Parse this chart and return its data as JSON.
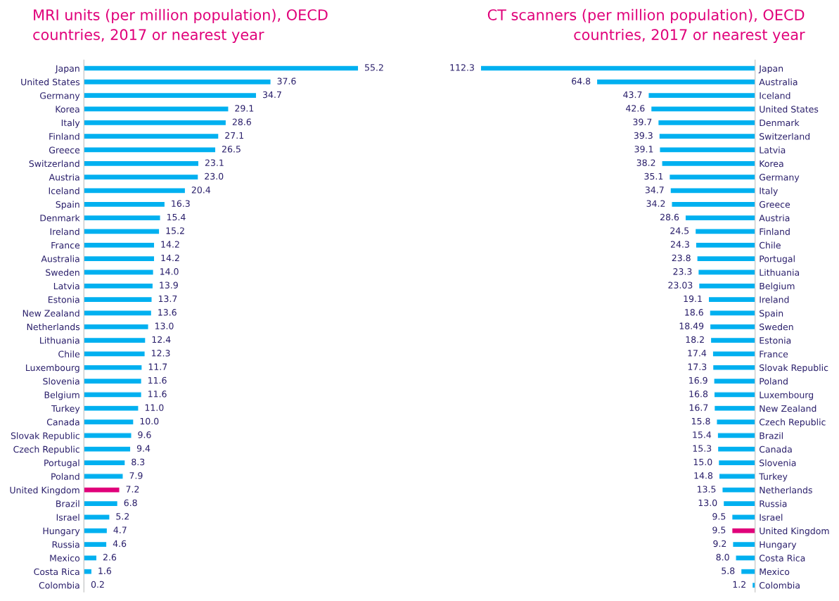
{
  "chart_data": [
    {
      "type": "bar",
      "orientation": "horizontal",
      "title": "MRI units (per million population), OECD countries, 2017 or nearest year",
      "categories": [
        "Japan",
        "United States",
        "Germany",
        "Korea",
        "Italy",
        "Finland",
        "Greece",
        "Switzerland",
        "Austria",
        "Iceland",
        "Spain",
        "Denmark",
        "Ireland",
        "France",
        "Australia",
        "Sweden",
        "Latvia",
        "Estonia",
        "New Zealand",
        "Netherlands",
        "Lithuania",
        "Chile",
        "Luxembourg",
        "Slovenia",
        "Belgium",
        "Turkey",
        "Canada",
        "Slovak Republic",
        "Czech Republic",
        "Portugal",
        "Poland",
        "United Kingdom",
        "Brazil",
        "Israel",
        "Hungary",
        "Russia",
        "Mexico",
        "Costa Rica",
        "Colombia"
      ],
      "values": [
        55.2,
        37.6,
        34.7,
        29.1,
        28.6,
        27.1,
        26.5,
        23.1,
        23.0,
        20.4,
        16.3,
        15.4,
        15.2,
        14.2,
        14.2,
        14.0,
        13.9,
        13.7,
        13.6,
        13.0,
        12.4,
        12.3,
        11.7,
        11.6,
        11.6,
        11.0,
        10.0,
        9.6,
        9.4,
        8.3,
        7.9,
        7.2,
        6.8,
        5.2,
        4.7,
        4.6,
        2.6,
        1.6,
        0.2
      ],
      "value_labels": [
        "55.2",
        "37.6",
        "34.7",
        "29.1",
        "28.6",
        "27.1",
        "26.5",
        "23.1",
        "23.0",
        "20.4",
        "16.3",
        "15.4",
        "15.2",
        "14.2",
        "14.2",
        "14.0",
        "13.9",
        "13.7",
        "13.6",
        "13.0",
        "12.4",
        "12.3",
        "11.7",
        "11.6",
        "11.6",
        "11.0",
        "10.0",
        "9.6",
        "9.4",
        "8.3",
        "7.9",
        "7.2",
        "6.8",
        "5.2",
        "4.7",
        "4.6",
        "2.6",
        "1.6",
        "0.2"
      ],
      "colors": [
        "#00b0f0",
        "#00b0f0",
        "#00b0f0",
        "#00b0f0",
        "#00b0f0",
        "#00b0f0",
        "#00b0f0",
        "#00b0f0",
        "#00b0f0",
        "#00b0f0",
        "#00b0f0",
        "#00b0f0",
        "#00b0f0",
        "#00b0f0",
        "#00b0f0",
        "#00b0f0",
        "#00b0f0",
        "#00b0f0",
        "#00b0f0",
        "#00b0f0",
        "#00b0f0",
        "#00b0f0",
        "#00b0f0",
        "#00b0f0",
        "#00b0f0",
        "#00b0f0",
        "#00b0f0",
        "#00b0f0",
        "#00b0f0",
        "#00b0f0",
        "#00b0f0",
        "#e0007a",
        "#00b0f0",
        "#00b0f0",
        "#00b0f0",
        "#00b0f0",
        "#00b0f0",
        "#00b0f0",
        "#00b0f0"
      ],
      "tick_labels": "y"
    },
    {
      "type": "bar",
      "orientation": "horizontal",
      "title": "CT scanners (per million population), OECD countries, 2017 or nearest year",
      "categories": [
        "Japan",
        "Australia",
        "Iceland",
        "United States",
        "Denmark",
        "Switzerland",
        "Latvia",
        "Korea",
        "Germany",
        "Italy",
        "Greece",
        "Austria",
        "Finland",
        "Chile",
        "Portugal",
        "Lithuania",
        "Belgium",
        "Ireland",
        "Spain",
        "Sweden",
        "Estonia",
        "France",
        "Slovak Republic",
        "Poland",
        "Luxembourg",
        "New Zealand",
        "Czech Republic",
        "Brazil",
        "Canada",
        "Slovenia",
        "Turkey",
        "Netherlands",
        "Russia",
        "Israel",
        "United Kingdom",
        "Hungary",
        "Costa Rica",
        "Mexico",
        "Colombia"
      ],
      "values": [
        112.3,
        64.8,
        43.7,
        42.6,
        39.7,
        39.3,
        39.1,
        38.2,
        35.1,
        34.7,
        34.2,
        28.6,
        24.5,
        24.3,
        23.8,
        23.3,
        23.03,
        19.1,
        18.6,
        18.49,
        18.2,
        17.4,
        17.3,
        16.9,
        16.8,
        16.7,
        15.8,
        15.4,
        15.3,
        15.0,
        14.8,
        13.5,
        13.0,
        9.5,
        9.5,
        9.2,
        8.0,
        5.8,
        1.2
      ],
      "value_labels": [
        "112.3",
        "64.8",
        "43.7",
        "42.6",
        "39.7",
        "39.3",
        "39.1",
        "38.2",
        "35.1",
        "34.7",
        "34.2",
        "28.6",
        "24.5",
        "24.3",
        "23.8",
        "23.3",
        "23.03",
        "19.1",
        "18.6",
        "18.49",
        "18.2",
        "17.4",
        "17.3",
        "16.9",
        "16.8",
        "16.7",
        "15.8",
        "15.4",
        "15.3",
        "15.0",
        "14.8",
        "13.5",
        "13.0",
        "9.5",
        "9.5",
        "9.2",
        "8.0",
        "5.8",
        "1.2"
      ],
      "colors": [
        "#00b0f0",
        "#00b0f0",
        "#00b0f0",
        "#00b0f0",
        "#00b0f0",
        "#00b0f0",
        "#00b0f0",
        "#00b0f0",
        "#00b0f0",
        "#00b0f0",
        "#00b0f0",
        "#00b0f0",
        "#00b0f0",
        "#00b0f0",
        "#00b0f0",
        "#00b0f0",
        "#00b0f0",
        "#00b0f0",
        "#00b0f0",
        "#00b0f0",
        "#00b0f0",
        "#00b0f0",
        "#00b0f0",
        "#00b0f0",
        "#00b0f0",
        "#00b0f0",
        "#00b0f0",
        "#00b0f0",
        "#00b0f0",
        "#00b0f0",
        "#00b0f0",
        "#00b0f0",
        "#00b0f0",
        "#00b0f0",
        "#e0007a",
        "#00b0f0",
        "#00b0f0",
        "#00b0f0",
        "#00b0f0"
      ],
      "tick_labels": "y"
    }
  ]
}
